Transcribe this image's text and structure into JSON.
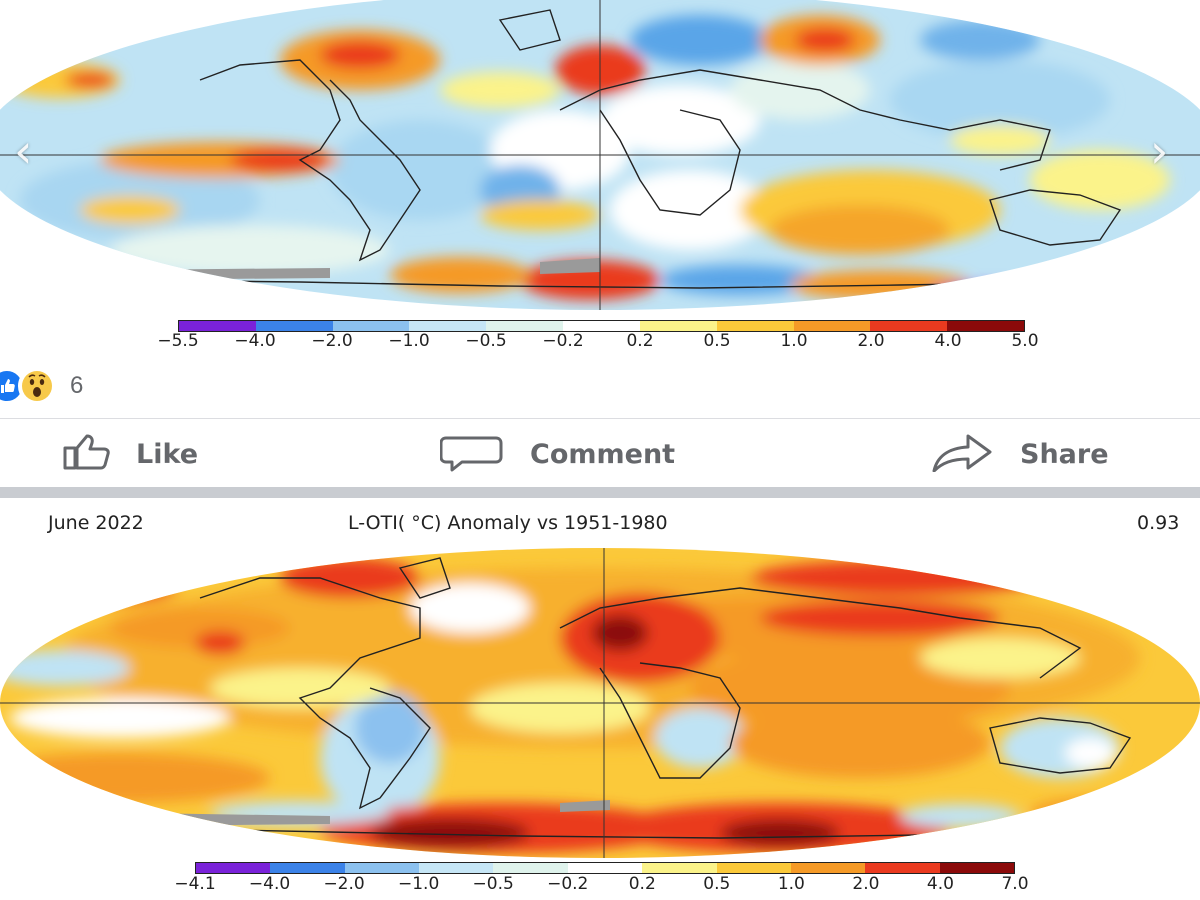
{
  "top_map": {
    "nav_prev": "‹",
    "nav_next": "›",
    "colorbar": {
      "colors": [
        "#7a22d9",
        "#3b82e8",
        "#8cc1ef",
        "#c6e6f6",
        "#dff3ec",
        "#ffffff",
        "#fbf38a",
        "#fbc93a",
        "#f59a27",
        "#ea3a1f",
        "#8b0a0a"
      ],
      "labels": [
        "−5.5",
        "−4.0",
        "−2.0",
        "−1.0",
        "−0.5",
        "−0.2",
        "0.2",
        "0.5",
        "1.0",
        "2.0",
        "4.0",
        "5.0"
      ]
    }
  },
  "post_actions": {
    "reactions": {
      "like_icon": "thumbs-up-icon",
      "wow_icon": "wow-face-icon",
      "count": "6"
    },
    "like_label": "Like",
    "comment_label": "Comment",
    "share_label": "Share"
  },
  "bottom_map": {
    "date": "June 2022",
    "title": "L-OTI( °C) Anomaly vs 1951-1980",
    "global_value": "0.93",
    "colorbar": {
      "colors": [
        "#7a22d9",
        "#3b82e8",
        "#8cc1ef",
        "#c6e6f6",
        "#dff3ec",
        "#ffffff",
        "#fbf38a",
        "#fbc93a",
        "#f59a27",
        "#ea3a1f",
        "#8b0a0a"
      ],
      "labels": [
        "−4.1",
        "−4.0",
        "−2.0",
        "−1.0",
        "−0.5",
        "−0.2",
        "0.2",
        "0.5",
        "1.0",
        "2.0",
        "4.0",
        "7.0"
      ]
    }
  }
}
